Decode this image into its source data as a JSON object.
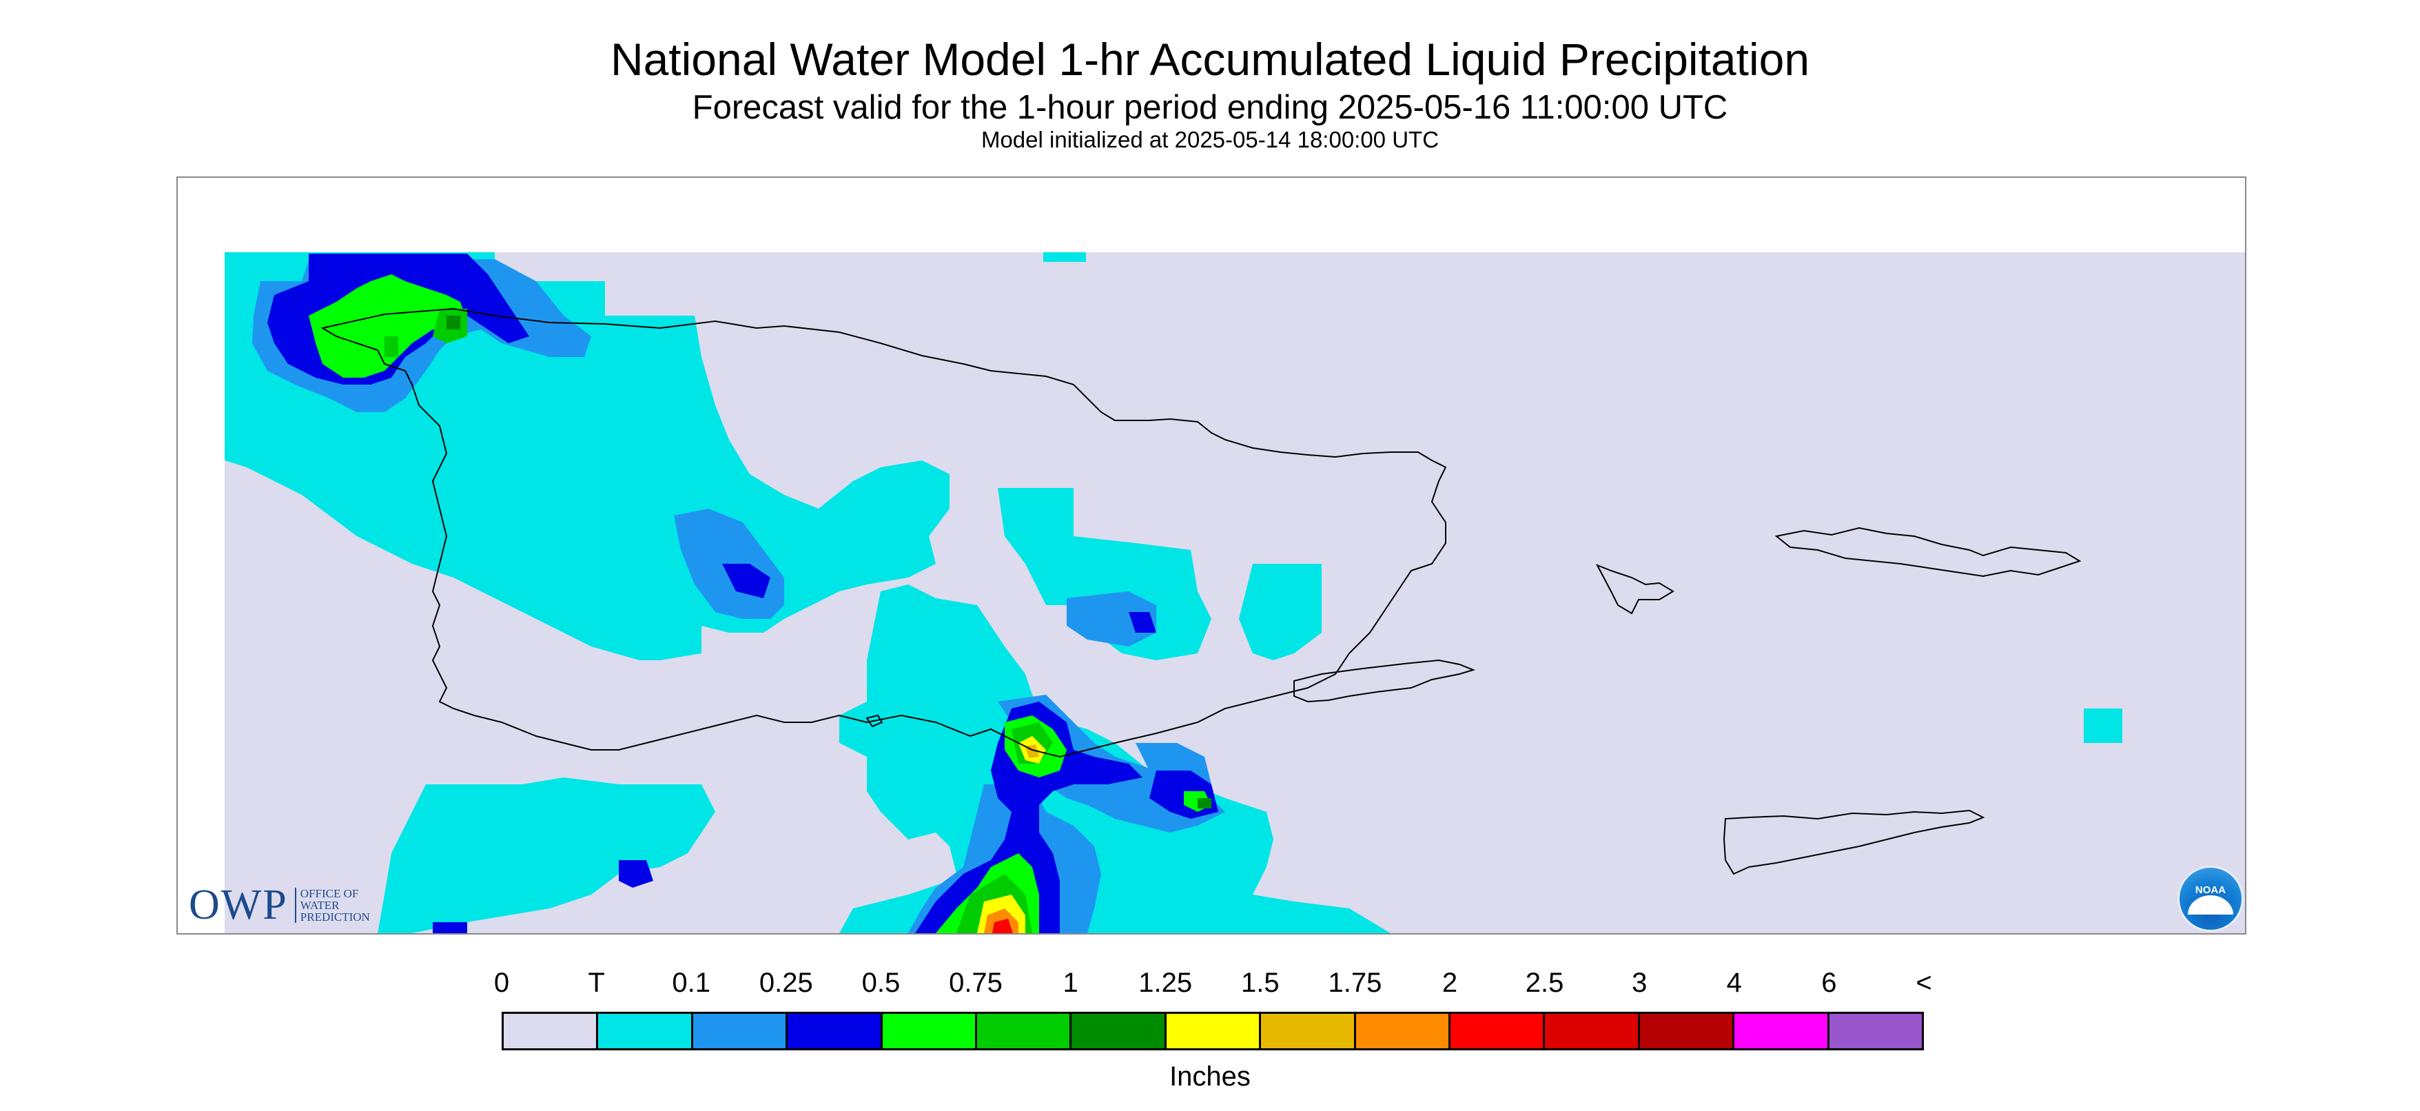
{
  "title": "National Water Model 1-hr Accumulated Liquid Precipitation",
  "subtitle": "Forecast valid for the 1-hour period ending 2025-05-16 11:00:00 UTC",
  "init_line": "Model initialized at 2025-05-14 18:00:00 UTC",
  "logos": {
    "owp_mark": "OWP",
    "owp_text": [
      "OFFICE OF",
      "WATER",
      "PREDICTION"
    ],
    "noaa": "NOAA"
  },
  "legend": {
    "units": "Inches",
    "labels": [
      "0",
      "T",
      "0.1",
      "0.25",
      "0.5",
      "0.75",
      "1",
      "1.25",
      "1.5",
      "1.75",
      "2",
      "2.5",
      "3",
      "4",
      "6",
      "<"
    ],
    "colors": [
      "#dcdcee",
      "#00e5e5",
      "#1e96f0",
      "#0000e6",
      "#00ff00",
      "#00cc00",
      "#008c00",
      "#ffff00",
      "#e6b800",
      "#ff8c00",
      "#ff0000",
      "#dc0000",
      "#b40000",
      "#ff00ff",
      "#9955cc"
    ]
  },
  "map": {
    "background_color": "#ffffff",
    "nodata_color": "#dcdcee",
    "coastline_color": "#000000"
  }
}
